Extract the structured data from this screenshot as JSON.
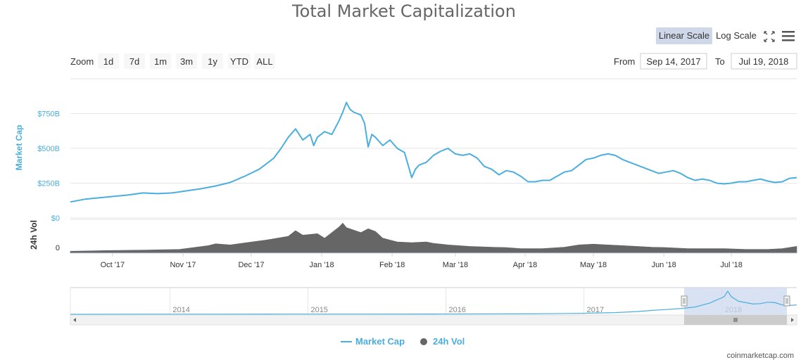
{
  "chart_data": {
    "type": "line",
    "title": "Total Market Capitalization",
    "xlabel": "",
    "ylabel": "Market Cap",
    "ylabel2": "24h Vol",
    "date_range": [
      "2017-09-14",
      "2018-07-19"
    ],
    "ylim": [
      0,
      1000
    ],
    "yticks": [
      {
        "value": 0,
        "label": "$0"
      },
      {
        "value": 250,
        "label": "$250B"
      },
      {
        "value": 500,
        "label": "$500B"
      },
      {
        "value": 750,
        "label": "$750B"
      }
    ],
    "vol_ylim": [
      0,
      90
    ],
    "vol_tick_label": "0",
    "xticks": [
      {
        "label": "Oct '17",
        "pos": 0.058
      },
      {
        "label": "Nov '17",
        "pos": 0.155
      },
      {
        "label": "Dec '17",
        "pos": 0.249
      },
      {
        "label": "Jan '18",
        "pos": 0.346
      },
      {
        "label": "Feb '18",
        "pos": 0.443
      },
      {
        "label": "Mar '18",
        "pos": 0.53
      },
      {
        "label": "Apr '18",
        "pos": 0.626
      },
      {
        "label": "May '18",
        "pos": 0.72
      },
      {
        "label": "Jun '18",
        "pos": 0.817
      },
      {
        "label": "Jul '18",
        "pos": 0.91
      }
    ],
    "series": [
      {
        "name": "Market Cap",
        "color": "#4aaede",
        "points": [
          [
            0,
            115
          ],
          [
            0.02,
            135
          ],
          [
            0.04,
            145
          ],
          [
            0.06,
            155
          ],
          [
            0.08,
            165
          ],
          [
            0.1,
            180
          ],
          [
            0.12,
            175
          ],
          [
            0.14,
            180
          ],
          [
            0.16,
            195
          ],
          [
            0.18,
            210
          ],
          [
            0.2,
            230
          ],
          [
            0.22,
            255
          ],
          [
            0.24,
            300
          ],
          [
            0.26,
            350
          ],
          [
            0.28,
            430
          ],
          [
            0.29,
            500
          ],
          [
            0.3,
            580
          ],
          [
            0.31,
            640
          ],
          [
            0.32,
            560
          ],
          [
            0.33,
            600
          ],
          [
            0.335,
            520
          ],
          [
            0.34,
            580
          ],
          [
            0.35,
            620
          ],
          [
            0.36,
            600
          ],
          [
            0.37,
            700
          ],
          [
            0.375,
            760
          ],
          [
            0.38,
            830
          ],
          [
            0.385,
            780
          ],
          [
            0.39,
            760
          ],
          [
            0.4,
            740
          ],
          [
            0.405,
            680
          ],
          [
            0.41,
            510
          ],
          [
            0.415,
            600
          ],
          [
            0.42,
            580
          ],
          [
            0.43,
            520
          ],
          [
            0.44,
            560
          ],
          [
            0.45,
            500
          ],
          [
            0.46,
            470
          ],
          [
            0.465,
            380
          ],
          [
            0.47,
            290
          ],
          [
            0.475,
            350
          ],
          [
            0.48,
            380
          ],
          [
            0.49,
            400
          ],
          [
            0.5,
            450
          ],
          [
            0.51,
            480
          ],
          [
            0.52,
            500
          ],
          [
            0.53,
            460
          ],
          [
            0.54,
            450
          ],
          [
            0.55,
            460
          ],
          [
            0.56,
            430
          ],
          [
            0.57,
            370
          ],
          [
            0.58,
            350
          ],
          [
            0.59,
            310
          ],
          [
            0.6,
            340
          ],
          [
            0.61,
            330
          ],
          [
            0.62,
            300
          ],
          [
            0.63,
            260
          ],
          [
            0.64,
            260
          ],
          [
            0.65,
            270
          ],
          [
            0.66,
            270
          ],
          [
            0.67,
            300
          ],
          [
            0.68,
            330
          ],
          [
            0.69,
            340
          ],
          [
            0.7,
            380
          ],
          [
            0.71,
            420
          ],
          [
            0.72,
            430
          ],
          [
            0.73,
            450
          ],
          [
            0.74,
            460
          ],
          [
            0.75,
            450
          ],
          [
            0.76,
            420
          ],
          [
            0.77,
            400
          ],
          [
            0.78,
            380
          ],
          [
            0.79,
            360
          ],
          [
            0.8,
            340
          ],
          [
            0.81,
            320
          ],
          [
            0.82,
            330
          ],
          [
            0.83,
            340
          ],
          [
            0.84,
            320
          ],
          [
            0.85,
            290
          ],
          [
            0.86,
            270
          ],
          [
            0.87,
            280
          ],
          [
            0.88,
            270
          ],
          [
            0.89,
            250
          ],
          [
            0.9,
            245
          ],
          [
            0.91,
            250
          ],
          [
            0.92,
            260
          ],
          [
            0.93,
            260
          ],
          [
            0.94,
            270
          ],
          [
            0.95,
            280
          ],
          [
            0.96,
            265
          ],
          [
            0.97,
            255
          ],
          [
            0.98,
            260
          ],
          [
            0.99,
            285
          ],
          [
            1.0,
            290
          ]
        ]
      },
      {
        "name": "24h Vol",
        "color": "#666666",
        "points": [
          [
            0,
            5
          ],
          [
            0.05,
            7
          ],
          [
            0.1,
            8
          ],
          [
            0.15,
            10
          ],
          [
            0.19,
            20
          ],
          [
            0.2,
            25
          ],
          [
            0.22,
            22
          ],
          [
            0.25,
            30
          ],
          [
            0.27,
            35
          ],
          [
            0.3,
            45
          ],
          [
            0.31,
            60
          ],
          [
            0.32,
            48
          ],
          [
            0.34,
            52
          ],
          [
            0.35,
            40
          ],
          [
            0.36,
            55
          ],
          [
            0.37,
            70
          ],
          [
            0.375,
            80
          ],
          [
            0.38,
            68
          ],
          [
            0.4,
            55
          ],
          [
            0.41,
            65
          ],
          [
            0.42,
            58
          ],
          [
            0.43,
            40
          ],
          [
            0.45,
            30
          ],
          [
            0.47,
            28
          ],
          [
            0.49,
            30
          ],
          [
            0.5,
            26
          ],
          [
            0.52,
            22
          ],
          [
            0.55,
            18
          ],
          [
            0.58,
            16
          ],
          [
            0.6,
            15
          ],
          [
            0.62,
            12
          ],
          [
            0.65,
            12
          ],
          [
            0.68,
            16
          ],
          [
            0.7,
            22
          ],
          [
            0.72,
            24
          ],
          [
            0.74,
            22
          ],
          [
            0.76,
            20
          ],
          [
            0.78,
            18
          ],
          [
            0.8,
            16
          ],
          [
            0.82,
            15
          ],
          [
            0.85,
            12
          ],
          [
            0.88,
            12
          ],
          [
            0.9,
            12
          ],
          [
            0.93,
            10
          ],
          [
            0.96,
            10
          ],
          [
            0.98,
            12
          ],
          [
            1.0,
            18
          ]
        ]
      }
    ],
    "navigator": {
      "year_labels": [
        "2014",
        "2015",
        "2016",
        "2017",
        "2018"
      ],
      "year_pos": [
        0.137,
        0.327,
        0.517,
        0.707,
        0.897
      ],
      "selected_range": [
        0.845,
        1.0
      ],
      "series": [
        [
          0,
          8
        ],
        [
          0.1,
          9
        ],
        [
          0.2,
          9
        ],
        [
          0.3,
          10
        ],
        [
          0.4,
          10
        ],
        [
          0.5,
          11
        ],
        [
          0.6,
          12
        ],
        [
          0.65,
          14
        ],
        [
          0.7,
          18
        ],
        [
          0.75,
          26
        ],
        [
          0.78,
          38
        ],
        [
          0.8,
          50
        ],
        [
          0.82,
          60
        ],
        [
          0.84,
          70
        ],
        [
          0.86,
          88
        ],
        [
          0.88,
          130
        ],
        [
          0.9,
          200
        ],
        [
          0.905,
          260
        ],
        [
          0.91,
          200
        ],
        [
          0.92,
          150
        ],
        [
          0.93,
          135
        ],
        [
          0.94,
          120
        ],
        [
          0.95,
          125
        ],
        [
          0.96,
          140
        ],
        [
          0.97,
          135
        ],
        [
          0.98,
          110
        ],
        [
          0.99,
          105
        ],
        [
          1.0,
          110
        ]
      ]
    }
  },
  "toolbar": {
    "zoom_label": "Zoom",
    "zoom_buttons": [
      "1d",
      "7d",
      "1m",
      "3m",
      "1y",
      "YTD",
      "ALL"
    ],
    "from_label": "From",
    "from_value": "Sep 14, 2017",
    "to_label": "To",
    "to_value": "Jul 19, 2018",
    "linear_scale": "Linear Scale",
    "log_scale": "Log Scale"
  },
  "legend": {
    "market_cap": "Market Cap",
    "vol": "24h Vol"
  },
  "credit": "coinmarketcap.com",
  "colors": {
    "accent": "#4aaede",
    "volume": "#666666",
    "navigator_fill": "#ccd8ed"
  }
}
